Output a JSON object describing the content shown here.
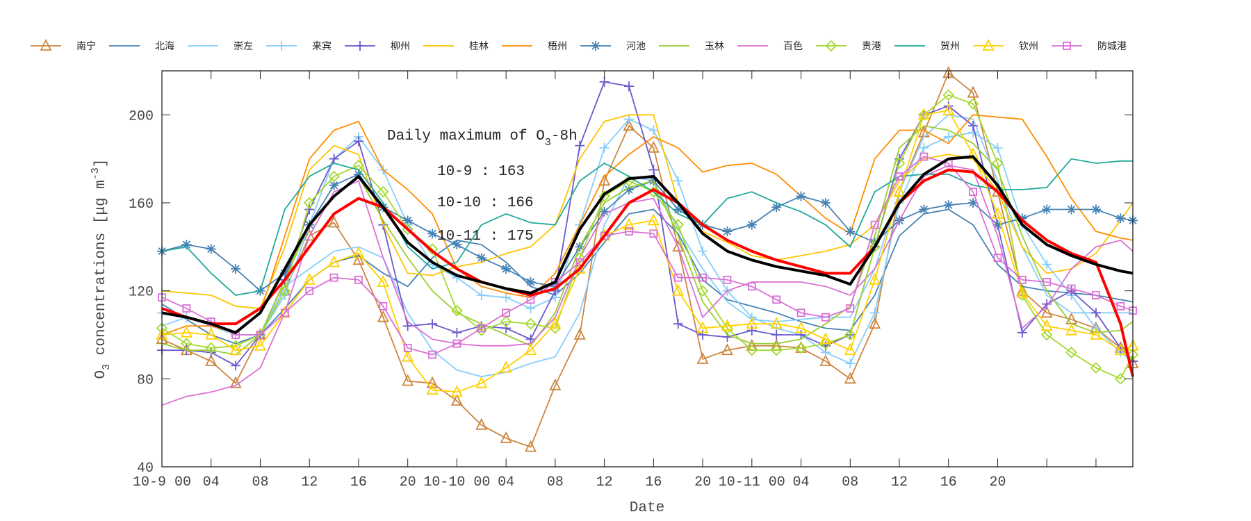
{
  "chart_data": {
    "type": "line",
    "xlabel": "Date",
    "ylabel": {
      "prefix": "O",
      "sub": "3",
      "mid": " concentrations [μg m",
      "sup": "-3",
      "suffix": "]"
    },
    "xlim": [
      0,
      79
    ],
    "ylim": [
      40,
      220
    ],
    "yticks": [
      40,
      80,
      120,
      160,
      200
    ],
    "xticks": [
      4,
      8,
      12,
      16,
      20,
      24,
      28,
      32,
      36,
      40,
      44,
      48,
      52,
      56,
      60,
      64,
      68,
      72,
      76
    ],
    "xtick_labels": [
      {
        "h": 0,
        "t": "10-9 00"
      },
      {
        "h": 4,
        "t": "04"
      },
      {
        "h": 8,
        "t": "08"
      },
      {
        "h": 12,
        "t": "12"
      },
      {
        "h": 16,
        "t": "16"
      },
      {
        "h": 20,
        "t": "20"
      },
      {
        "h": 24,
        "t": "10-10 00"
      },
      {
        "h": 28,
        "t": "04"
      },
      {
        "h": 32,
        "t": "08"
      },
      {
        "h": 36,
        "t": "12"
      },
      {
        "h": 40,
        "t": "16"
      },
      {
        "h": 44,
        "t": "20"
      },
      {
        "h": 48,
        "t": "10-11 00"
      },
      {
        "h": 52,
        "t": "04"
      },
      {
        "h": 56,
        "t": "08"
      },
      {
        "h": 60,
        "t": "12"
      },
      {
        "h": 64,
        "t": "16"
      },
      {
        "h": 68,
        "t": "20"
      }
    ],
    "grid": false,
    "legend_position": "top",
    "annotation": {
      "title_prefix": "Daily maximum of O",
      "title_sub": "3",
      "title_suffix": "-8h",
      "lines": [
        "10-9 : 163",
        "10-10 : 166",
        "10-11 : 175"
      ]
    },
    "x": [
      0,
      2,
      4,
      6,
      8,
      10,
      12,
      14,
      16,
      18,
      20,
      22,
      24,
      26,
      28,
      30,
      32,
      34,
      36,
      38,
      40,
      42,
      44,
      46,
      48,
      50,
      52,
      54,
      56,
      58,
      60,
      62,
      64,
      66,
      68,
      70,
      72,
      74,
      76,
      78,
      79
    ],
    "series": [
      {
        "name": "南宁",
        "color": "#cd853f",
        "marker": "triangle",
        "values": [
          98,
          93,
          88,
          78,
          100,
          120,
          145,
          151,
          134,
          108,
          79,
          78,
          70,
          59,
          53,
          49,
          77,
          100,
          170,
          195,
          185,
          140,
          89,
          93,
          95,
          95,
          94,
          88,
          80,
          105,
          165,
          192,
          219,
          210,
          165,
          120,
          110,
          107,
          103,
          94,
          87
        ]
      },
      {
        "name": "北海",
        "color": "#4682b4",
        "marker": "none",
        "values": [
          114,
          107,
          100,
          96,
          100,
          112,
          125,
          133,
          136,
          128,
          122,
          135,
          143,
          141,
          133,
          122,
          118,
          128,
          142,
          155,
          157,
          146,
          125,
          116,
          113,
          110,
          106,
          103,
          102,
          118,
          145,
          155,
          157,
          150,
          132,
          122,
          120,
          119,
          118,
          116,
          115
        ]
      },
      {
        "name": "崇左",
        "color": "#87cefa",
        "marker": "none",
        "values": [
          104,
          108,
          104,
          100,
          100,
          122,
          130,
          138,
          140,
          135,
          110,
          93,
          84,
          81,
          83,
          87,
          90,
          110,
          150,
          172,
          170,
          148,
          130,
          115,
          107,
          106,
          107,
          108,
          108,
          130,
          165,
          190,
          200,
          198,
          170,
          140,
          118,
          110,
          110,
          110,
          110
        ]
      },
      {
        "name": "来宾",
        "color": "#87cefa",
        "marker": "plus",
        "values": [
          110,
          108,
          105,
          100,
          100,
          118,
          150,
          180,
          190,
          175,
          150,
          132,
          126,
          118,
          117,
          112,
          117,
          150,
          185,
          198,
          193,
          170,
          138,
          120,
          108,
          103,
          100,
          92,
          87,
          110,
          160,
          185,
          190,
          192,
          185,
          150,
          132,
          118,
          103,
          92,
          88
        ]
      },
      {
        "name": "柳州",
        "color": "#6a5acd",
        "marker": "plus",
        "values": [
          93,
          93,
          92,
          86,
          100,
          125,
          157,
          180,
          188,
          150,
          104,
          105,
          101,
          104,
          103,
          98,
          120,
          186,
          215,
          213,
          175,
          105,
          100,
          99,
          102,
          100,
          100,
          95,
          100,
          140,
          180,
          200,
          204,
          195,
          150,
          101,
          114,
          120,
          110,
          94,
          88
        ]
      },
      {
        "name": "桂林",
        "color": "#ffc400",
        "marker": "none",
        "values": [
          120,
          119,
          118,
          113,
          112,
          140,
          175,
          186,
          182,
          150,
          128,
          127,
          131,
          133,
          137,
          140,
          150,
          180,
          197,
          200,
          200,
          160,
          147,
          142,
          136,
          134,
          136,
          138,
          141,
          150,
          170,
          180,
          182,
          180,
          165,
          140,
          128,
          130,
          137,
          152,
          160
        ]
      },
      {
        "name": "梧州",
        "color": "#ff8c00",
        "marker": "none",
        "values": [
          100,
          104,
          104,
          101,
          110,
          145,
          180,
          193,
          197,
          175,
          166,
          155,
          130,
          122,
          119,
          117,
          128,
          150,
          172,
          182,
          190,
          185,
          174,
          177,
          178,
          173,
          163,
          153,
          146,
          180,
          193,
          193,
          187,
          200,
          199,
          198,
          181,
          162,
          147,
          144,
          143
        ]
      },
      {
        "name": "河池",
        "color": "#4682b4",
        "marker": "star",
        "values": [
          138,
          141,
          139,
          130,
          120,
          128,
          150,
          168,
          173,
          158,
          152,
          146,
          141,
          135,
          130,
          124,
          122,
          140,
          156,
          166,
          170,
          157,
          150,
          147,
          150,
          158,
          163,
          160,
          147,
          142,
          152,
          157,
          159,
          160,
          150,
          153,
          157,
          157,
          157,
          153,
          152
        ]
      },
      {
        "name": "玉林",
        "color": "#9acd32",
        "marker": "none",
        "values": [
          96,
          93,
          93,
          91,
          100,
          125,
          150,
          163,
          172,
          152,
          135,
          120,
          110,
          105,
          100,
          95,
          110,
          140,
          160,
          167,
          170,
          145,
          115,
          100,
          96,
          96,
          98,
          105,
          113,
          145,
          185,
          195,
          193,
          187,
          175,
          145,
          120,
          105,
          101,
          102,
          106
        ]
      },
      {
        "name": "百色",
        "color": "#da70d6",
        "marker": "none",
        "values": [
          68,
          72,
          74,
          77,
          85,
          110,
          145,
          165,
          170,
          135,
          106,
          98,
          96,
          95,
          95,
          96,
          108,
          135,
          155,
          160,
          162,
          140,
          108,
          120,
          124,
          124,
          124,
          122,
          118,
          130,
          152,
          172,
          177,
          175,
          145,
          103,
          113,
          130,
          140,
          143,
          138
        ]
      },
      {
        "name": "贵港",
        "color": "#a2d92e",
        "marker": "diamond",
        "values": [
          103,
          96,
          94,
          95,
          100,
          120,
          160,
          172,
          177,
          165,
          148,
          139,
          111,
          102,
          106,
          105,
          103,
          135,
          163,
          170,
          165,
          150,
          120,
          103,
          93,
          93,
          94,
          96,
          100,
          140,
          178,
          200,
          209,
          205,
          178,
          118,
          100,
          92,
          85,
          80,
          91
        ]
      },
      {
        "name": "贺州",
        "color": "#20a89a",
        "marker": "none",
        "values": [
          138,
          140,
          128,
          118,
          120,
          157,
          172,
          178,
          175,
          160,
          140,
          130,
          133,
          150,
          155,
          151,
          150,
          170,
          178,
          172,
          165,
          155,
          150,
          162,
          165,
          160,
          156,
          150,
          140,
          165,
          172,
          173,
          173,
          168,
          166,
          166,
          167,
          180,
          178,
          179,
          179
        ]
      },
      {
        "name": "钦州",
        "color": "#ffd000",
        "marker": "triangle",
        "values": [
          100,
          101,
          100,
          93,
          95,
          110,
          125,
          133,
          137,
          124,
          90,
          75,
          74,
          78,
          85,
          93,
          105,
          130,
          145,
          150,
          152,
          120,
          103,
          104,
          105,
          105,
          103,
          98,
          93,
          125,
          165,
          200,
          202,
          182,
          155,
          119,
          104,
          102,
          100,
          93,
          95
        ]
      },
      {
        "name": "防城港",
        "color": "#da70d6",
        "marker": "square",
        "values": [
          117,
          112,
          106,
          100,
          100,
          110,
          120,
          126,
          125,
          113,
          94,
          91,
          96,
          103,
          110,
          116,
          124,
          133,
          145,
          147,
          146,
          126,
          126,
          125,
          122,
          116,
          110,
          108,
          112,
          150,
          172,
          181,
          178,
          165,
          135,
          125,
          124,
          121,
          118,
          113,
          111
        ]
      }
    ],
    "extra_series": [
      {
        "color": "#ff0000",
        "values": [
          112,
          108,
          105,
          105,
          112,
          125,
          140,
          155,
          162,
          158,
          148,
          138,
          130,
          124,
          121,
          118,
          121,
          130,
          145,
          160,
          166,
          160,
          150,
          143,
          138,
          134,
          131,
          128,
          128,
          140,
          160,
          170,
          175,
          174,
          165,
          152,
          143,
          137,
          133,
          105,
          81
        ]
      },
      {
        "color": "#000000",
        "values": [
          110,
          108,
          105,
          101,
          110,
          130,
          150,
          163,
          172,
          158,
          142,
          133,
          127,
          124,
          121,
          119,
          124,
          148,
          164,
          171,
          172,
          160,
          146,
          138,
          134,
          131,
          129,
          127,
          123,
          140,
          160,
          173,
          180,
          181,
          168,
          150,
          141,
          136,
          132,
          129,
          128
        ]
      }
    ]
  }
}
